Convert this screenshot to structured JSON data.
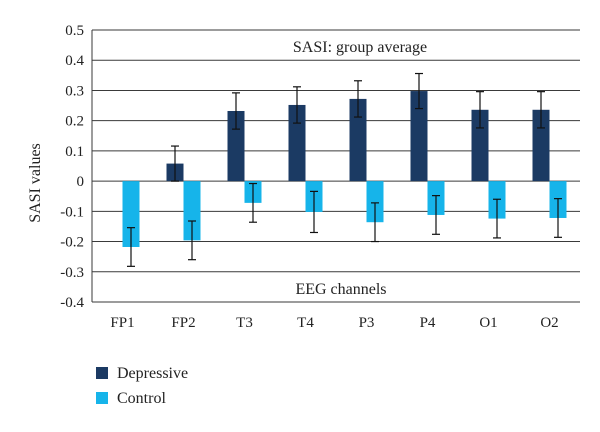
{
  "chart_data": {
    "type": "bar",
    "title": "SASI: group average",
    "xlabel": "EEG channels",
    "ylabel": "SASI values",
    "ylim": [
      -0.4,
      0.5
    ],
    "yticks": [
      "0.5",
      "0.4",
      "0.3",
      "0.2",
      "0.1",
      "0",
      "-0.1",
      "-0.2",
      "-0.3",
      "-0.4"
    ],
    "ytick_values": [
      0.5,
      0.4,
      0.3,
      0.2,
      0.1,
      0,
      -0.1,
      -0.2,
      -0.3,
      -0.4
    ],
    "grid": true,
    "legend_position": "bottom-left",
    "categories": [
      "FP1",
      "FP2",
      "T3",
      "T4",
      "P3",
      "P4",
      "O1",
      "O2"
    ],
    "series": [
      {
        "name": "Depressive",
        "color": "#1b3a63",
        "values": [
          0,
          0.058,
          0.232,
          0.252,
          0.272,
          0.298,
          0.236,
          0.236
        ],
        "errors": [
          0,
          0.058,
          0.06,
          0.06,
          0.06,
          0.058,
          0.06,
          0.06
        ]
      },
      {
        "name": "Control",
        "color": "#16b4ea",
        "values": [
          -0.218,
          -0.196,
          -0.072,
          -0.102,
          -0.136,
          -0.112,
          -0.124,
          -0.122
        ],
        "errors": [
          0.064,
          0.064,
          0.064,
          0.068,
          0.064,
          0.064,
          0.064,
          0.064
        ]
      }
    ]
  }
}
